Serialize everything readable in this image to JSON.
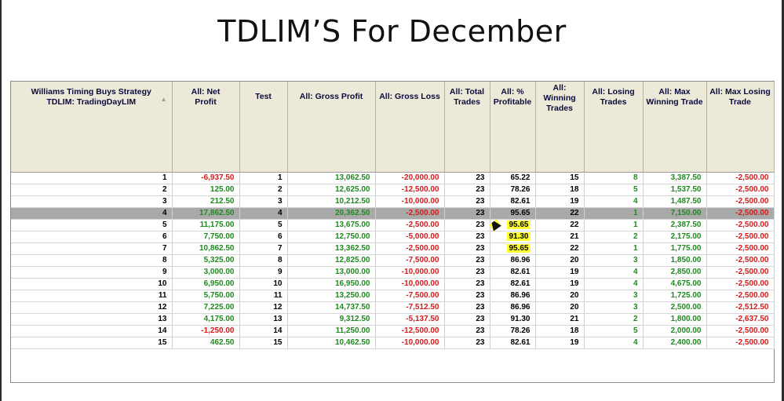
{
  "slide": {
    "title": "TDLIM’S For December"
  },
  "table": {
    "headers": [
      "Williams Timing Buys Strategy\nTDLIM: TradingDayLIM",
      "All: Net\nProfit",
      "Test",
      "All: Gross Profit",
      "All: Gross Loss",
      "All: Total\nTrades",
      "All: %\nProfitable",
      "All:\nWinning\nTrades",
      "All: Losing\nTrades",
      "All: Max\nWinning Trade",
      "All: Max Losing\nTrade"
    ],
    "sort_icon": "sort-ascending-icon",
    "colors": {
      "positive": "#1f8a1f",
      "negative": "#d61a1a",
      "highlight": "#ffff33",
      "selected_row": "#a9a9a9",
      "header_bg": "#ece9d8"
    },
    "selected_row": "4",
    "rows": [
      {
        "id": "1",
        "net": "-6,937.50",
        "test": "1",
        "gp": "13,062.50",
        "gl": "-20,000.00",
        "trades": "23",
        "pct": "65.22",
        "win": "15",
        "lose": "8",
        "maxwin": "3,387.50",
        "maxlose": "-2,500.00"
      },
      {
        "id": "2",
        "net": "125.00",
        "test": "2",
        "gp": "12,625.00",
        "gl": "-12,500.00",
        "trades": "23",
        "pct": "78.26",
        "win": "18",
        "lose": "5",
        "maxwin": "1,537.50",
        "maxlose": "-2,500.00"
      },
      {
        "id": "3",
        "net": "212.50",
        "test": "3",
        "gp": "10,212.50",
        "gl": "-10,000.00",
        "trades": "23",
        "pct": "82.61",
        "win": "19",
        "lose": "4",
        "maxwin": "1,487.50",
        "maxlose": "-2,500.00"
      },
      {
        "id": "4",
        "net": "17,862.50",
        "test": "4",
        "gp": "20,362.50",
        "gl": "-2,500.00",
        "trades": "23",
        "pct": "95.65",
        "win": "22",
        "lose": "1",
        "maxwin": "7,150.00",
        "maxlose": "-2,500.00"
      },
      {
        "id": "5",
        "net": "11,175.00",
        "test": "5",
        "gp": "13,675.00",
        "gl": "-2,500.00",
        "trades": "23",
        "pct": "95.65",
        "win": "22",
        "lose": "1",
        "maxwin": "2,387.50",
        "maxlose": "-2,500.00"
      },
      {
        "id": "6",
        "net": "7,750.00",
        "test": "6",
        "gp": "12,750.00",
        "gl": "-5,000.00",
        "trades": "23",
        "pct": "91.30",
        "win": "21",
        "lose": "2",
        "maxwin": "2,175.00",
        "maxlose": "-2,500.00"
      },
      {
        "id": "7",
        "net": "10,862.50",
        "test": "7",
        "gp": "13,362.50",
        "gl": "-2,500.00",
        "trades": "23",
        "pct": "95.65",
        "win": "22",
        "lose": "1",
        "maxwin": "1,775.00",
        "maxlose": "-2,500.00"
      },
      {
        "id": "8",
        "net": "5,325.00",
        "test": "8",
        "gp": "12,825.00",
        "gl": "-7,500.00",
        "trades": "23",
        "pct": "86.96",
        "win": "20",
        "lose": "3",
        "maxwin": "1,850.00",
        "maxlose": "-2,500.00"
      },
      {
        "id": "9",
        "net": "3,000.00",
        "test": "9",
        "gp": "13,000.00",
        "gl": "-10,000.00",
        "trades": "23",
        "pct": "82.61",
        "win": "19",
        "lose": "4",
        "maxwin": "2,850.00",
        "maxlose": "-2,500.00"
      },
      {
        "id": "10",
        "net": "6,950.00",
        "test": "10",
        "gp": "16,950.00",
        "gl": "-10,000.00",
        "trades": "23",
        "pct": "82.61",
        "win": "19",
        "lose": "4",
        "maxwin": "4,675.00",
        "maxlose": "-2,500.00"
      },
      {
        "id": "11",
        "net": "5,750.00",
        "test": "11",
        "gp": "13,250.00",
        "gl": "-7,500.00",
        "trades": "23",
        "pct": "86.96",
        "win": "20",
        "lose": "3",
        "maxwin": "1,725.00",
        "maxlose": "-2,500.00"
      },
      {
        "id": "12",
        "net": "7,225.00",
        "test": "12",
        "gp": "14,737.50",
        "gl": "-7,512.50",
        "trades": "23",
        "pct": "86.96",
        "win": "20",
        "lose": "3",
        "maxwin": "2,500.00",
        "maxlose": "-2,512.50"
      },
      {
        "id": "13",
        "net": "4,175.00",
        "test": "13",
        "gp": "9,312.50",
        "gl": "-5,137.50",
        "trades": "23",
        "pct": "91.30",
        "win": "21",
        "lose": "2",
        "maxwin": "1,800.00",
        "maxlose": "-2,637.50"
      },
      {
        "id": "14",
        "net": "-1,250.00",
        "test": "14",
        "gp": "11,250.00",
        "gl": "-12,500.00",
        "trades": "23",
        "pct": "78.26",
        "win": "18",
        "lose": "5",
        "maxwin": "2,000.00",
        "maxlose": "-2,500.00"
      },
      {
        "id": "15",
        "net": "462.50",
        "test": "15",
        "gp": "10,462.50",
        "gl": "-10,000.00",
        "trades": "23",
        "pct": "82.61",
        "win": "19",
        "lose": "4",
        "maxwin": "2,400.00",
        "maxlose": "-2,500.00"
      }
    ],
    "highlighted_pct_rows": [
      "5",
      "6",
      "7"
    ]
  }
}
